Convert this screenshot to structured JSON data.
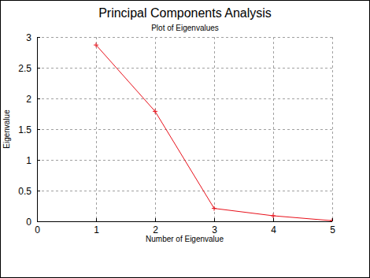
{
  "chart_data": {
    "type": "line",
    "title": "Principal Components Analysis",
    "subtitle": "Plot of Eigenvalues",
    "x_label": "Number of Eigenvalue",
    "y_label": "Eigenvalue",
    "x": [
      1,
      2,
      3,
      4,
      5
    ],
    "values": [
      2.87,
      1.79,
      0.21,
      0.09,
      0.01
    ],
    "color": "#e8101a",
    "marker": "plus",
    "xlim": [
      0,
      5
    ],
    "xticks": [
      0,
      1,
      2,
      3,
      4,
      5
    ],
    "ylim": [
      0,
      3
    ],
    "yticks": [
      0,
      0.5,
      1,
      1.5,
      2,
      2.5,
      3
    ],
    "grid": true
  }
}
